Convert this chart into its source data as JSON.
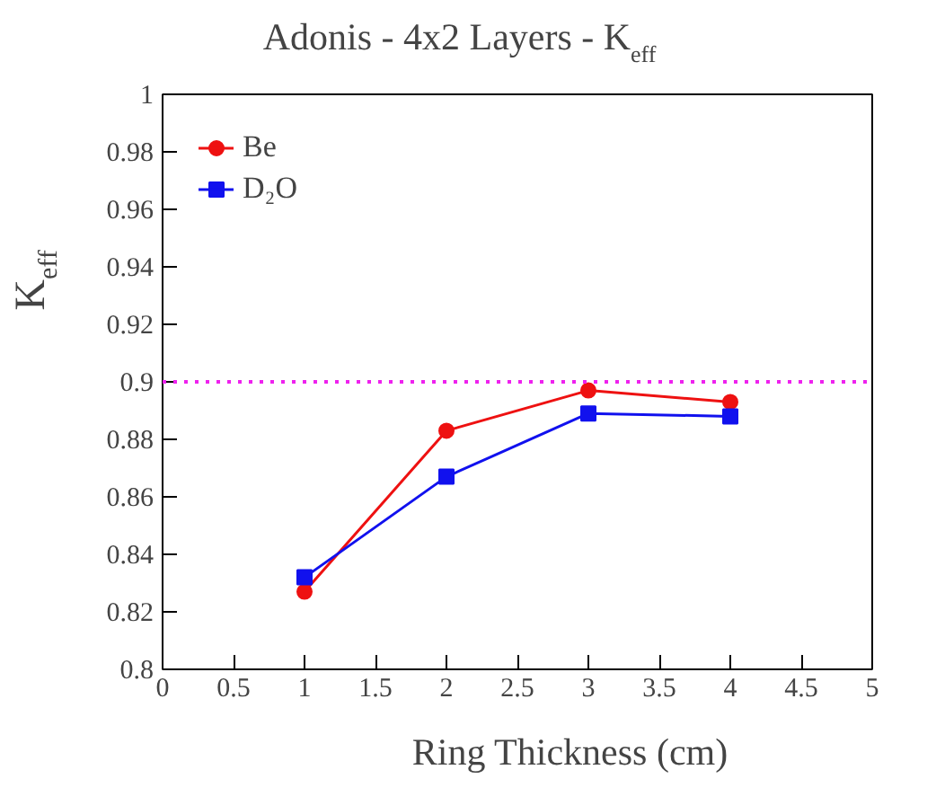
{
  "chart_data": {
    "type": "line",
    "title": "Adonis - 4x2 Layers - K$_{eff}$",
    "xlabel": "Ring Thickness (cm)",
    "ylabel": "K$_{eff}$",
    "x": [
      1,
      2,
      3,
      4
    ],
    "series": [
      {
        "name": "Be",
        "color": "#ee1111",
        "values": [
          0.827,
          0.883,
          0.897,
          0.893
        ],
        "marker": "circle"
      },
      {
        "name": "D₂O",
        "color": "#1111ee",
        "values": [
          0.832,
          0.867,
          0.889,
          0.888
        ],
        "marker": "square"
      }
    ],
    "xlim": [
      0,
      5
    ],
    "xticks": [
      0,
      0.5,
      1,
      1.5,
      2,
      2.5,
      3,
      3.5,
      4,
      4.5,
      5
    ],
    "ylim": [
      0.8,
      1
    ],
    "yticks": [
      0.8,
      0.82,
      0.84,
      0.86,
      0.88,
      0.9,
      0.92,
      0.94,
      0.96,
      0.98,
      1
    ],
    "ref_lines": [
      {
        "axis": "y",
        "value": 0.9,
        "color": "#ee22ee",
        "line_style": "dotted"
      }
    ],
    "grid": false,
    "legend": "top left",
    "line_style": "solid"
  }
}
